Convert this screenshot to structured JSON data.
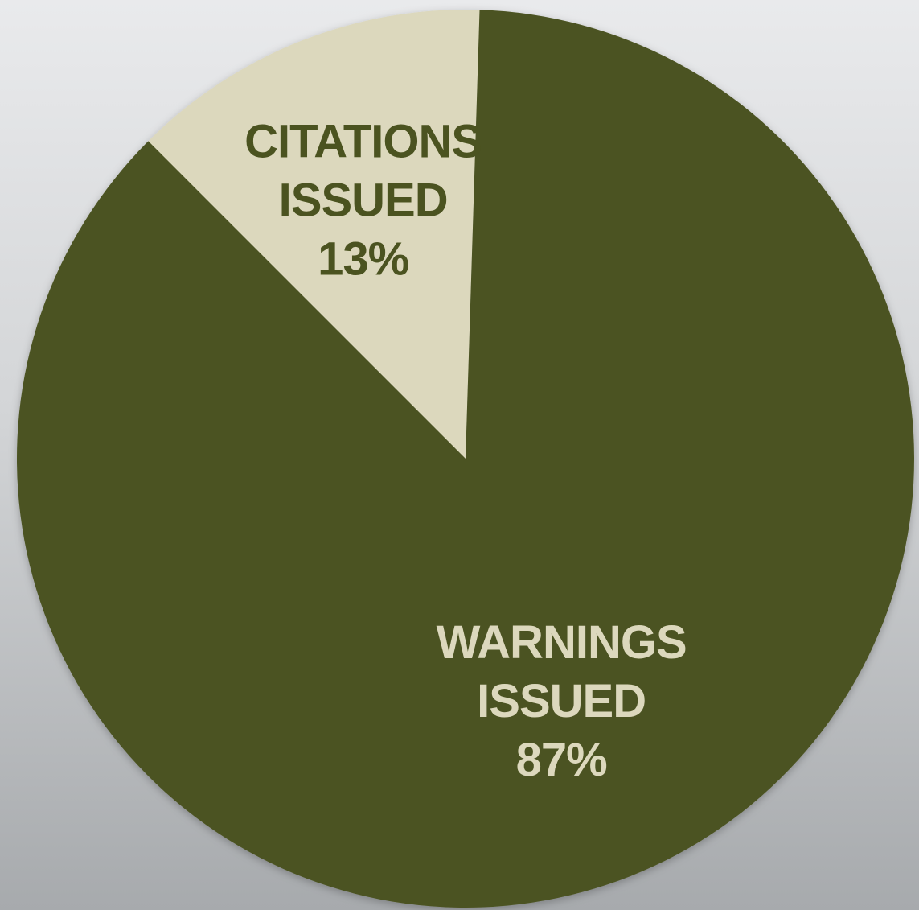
{
  "chart_data": {
    "type": "pie",
    "slices": [
      {
        "label_lines": [
          "CITATIONS",
          "ISSUED"
        ],
        "value": 13,
        "value_label": "13%",
        "color": "#dcd8bd",
        "text_color": "#4b5320"
      },
      {
        "label_lines": [
          "WARNINGS",
          "ISSUED"
        ],
        "value": 87,
        "value_label": "87%",
        "color": "#4b5320",
        "text_color": "#dcd8bd"
      }
    ],
    "start_angle_deg": -45,
    "direction": "clockwise",
    "legend": "none"
  }
}
